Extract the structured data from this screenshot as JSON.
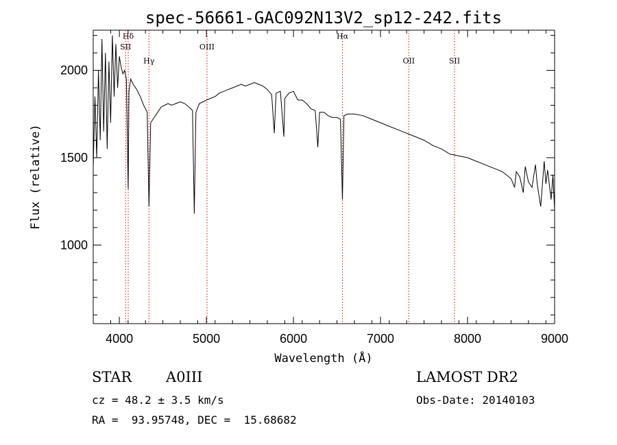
{
  "chart_data": {
    "type": "line",
    "title": "spec-56661-GAC092N13V2_sp12-242.fits",
    "xlabel": "Wavelength (Å)",
    "ylabel": "Flux (relative)",
    "xlim": [
      3700,
      9000
    ],
    "ylim": [
      550,
      2230
    ],
    "x_ticks": [
      4000,
      5000,
      6000,
      7000,
      8000,
      9000
    ],
    "y_ticks": [
      1000,
      1500,
      2000
    ],
    "line_color": "#000000",
    "marker_color": "#cc0000",
    "line_markers": [
      {
        "name": "Hδ",
        "wavelength": 4102,
        "label_y": 2180
      },
      {
        "name": "SII",
        "wavelength": 4072,
        "label_y": 2120
      },
      {
        "name": "Hγ",
        "wavelength": 4340,
        "label_y": 2040
      },
      {
        "name": "OIII",
        "wavelength": 5007,
        "label_y": 2120
      },
      {
        "name": "Hα",
        "wavelength": 6563,
        "label_y": 2180
      },
      {
        "name": "OII",
        "wavelength": 7325,
        "label_y": 2040
      },
      {
        "name": "SII",
        "wavelength": 7850,
        "label_y": 2040
      }
    ],
    "series": [
      {
        "x": [
          3700,
          3720,
          3740,
          3760,
          3780,
          3800,
          3820,
          3840,
          3860,
          3880,
          3900,
          3920,
          3940,
          3960,
          3980,
          4000,
          4020,
          4040,
          4060,
          4080,
          4102,
          4110,
          4130,
          4160,
          4200,
          4240,
          4280,
          4320,
          4340,
          4360,
          4400,
          4440,
          4480,
          4520,
          4560,
          4600,
          4650,
          4700,
          4750,
          4800,
          4840,
          4861,
          4880,
          4920,
          4960,
          5000,
          5050,
          5100,
          5150,
          5200,
          5250,
          5300,
          5350,
          5400,
          5450,
          5500,
          5550,
          5600,
          5650,
          5700,
          5750,
          5780,
          5800,
          5850,
          5890,
          5900,
          5950,
          6000,
          6050,
          6100,
          6150,
          6200,
          6250,
          6280,
          6300,
          6350,
          6400,
          6450,
          6500,
          6540,
          6563,
          6580,
          6620,
          6700,
          6800,
          6900,
          7000,
          7100,
          7200,
          7300,
          7400,
          7500,
          7600,
          7700,
          7800,
          7900,
          8000,
          8100,
          8200,
          8300,
          8400,
          8450,
          8500,
          8540,
          8560,
          8600,
          8640,
          8662,
          8700,
          8740,
          8780,
          8800,
          8840,
          8880,
          8900,
          8920,
          8960,
          8980,
          9000
        ],
        "y": [
          1450,
          1850,
          1500,
          2000,
          1600,
          2180,
          1650,
          2100,
          1550,
          2050,
          1700,
          2200,
          1850,
          2150,
          1900,
          2080,
          2020,
          1980,
          2000,
          1950,
          1320,
          1880,
          1950,
          1920,
          1890,
          1850,
          1800,
          1760,
          1220,
          1700,
          1730,
          1760,
          1790,
          1800,
          1810,
          1800,
          1810,
          1820,
          1810,
          1790,
          1770,
          1180,
          1760,
          1810,
          1820,
          1830,
          1840,
          1850,
          1870,
          1880,
          1890,
          1900,
          1910,
          1920,
          1910,
          1920,
          1930,
          1920,
          1910,
          1890,
          1860,
          1640,
          1870,
          1880,
          1620,
          1840,
          1870,
          1880,
          1830,
          1830,
          1810,
          1780,
          1770,
          1560,
          1760,
          1760,
          1740,
          1730,
          1730,
          1720,
          1260,
          1740,
          1750,
          1750,
          1740,
          1720,
          1700,
          1680,
          1660,
          1640,
          1620,
          1600,
          1570,
          1550,
          1520,
          1510,
          1500,
          1480,
          1460,
          1440,
          1420,
          1400,
          1380,
          1330,
          1420,
          1390,
          1300,
          1450,
          1360,
          1330,
          1460,
          1350,
          1220,
          1480,
          1350,
          1430,
          1260,
          1400,
          1200
        ]
      }
    ]
  },
  "info": {
    "object_type": "STAR",
    "subclass": "A0III",
    "survey": "LAMOST DR2",
    "redshift": "cz = 48.2 ± 3.5 km/s",
    "obs_date": "Obs-Date: 20140103",
    "coords": "RA =  93.95748, DEC =  15.68682"
  }
}
